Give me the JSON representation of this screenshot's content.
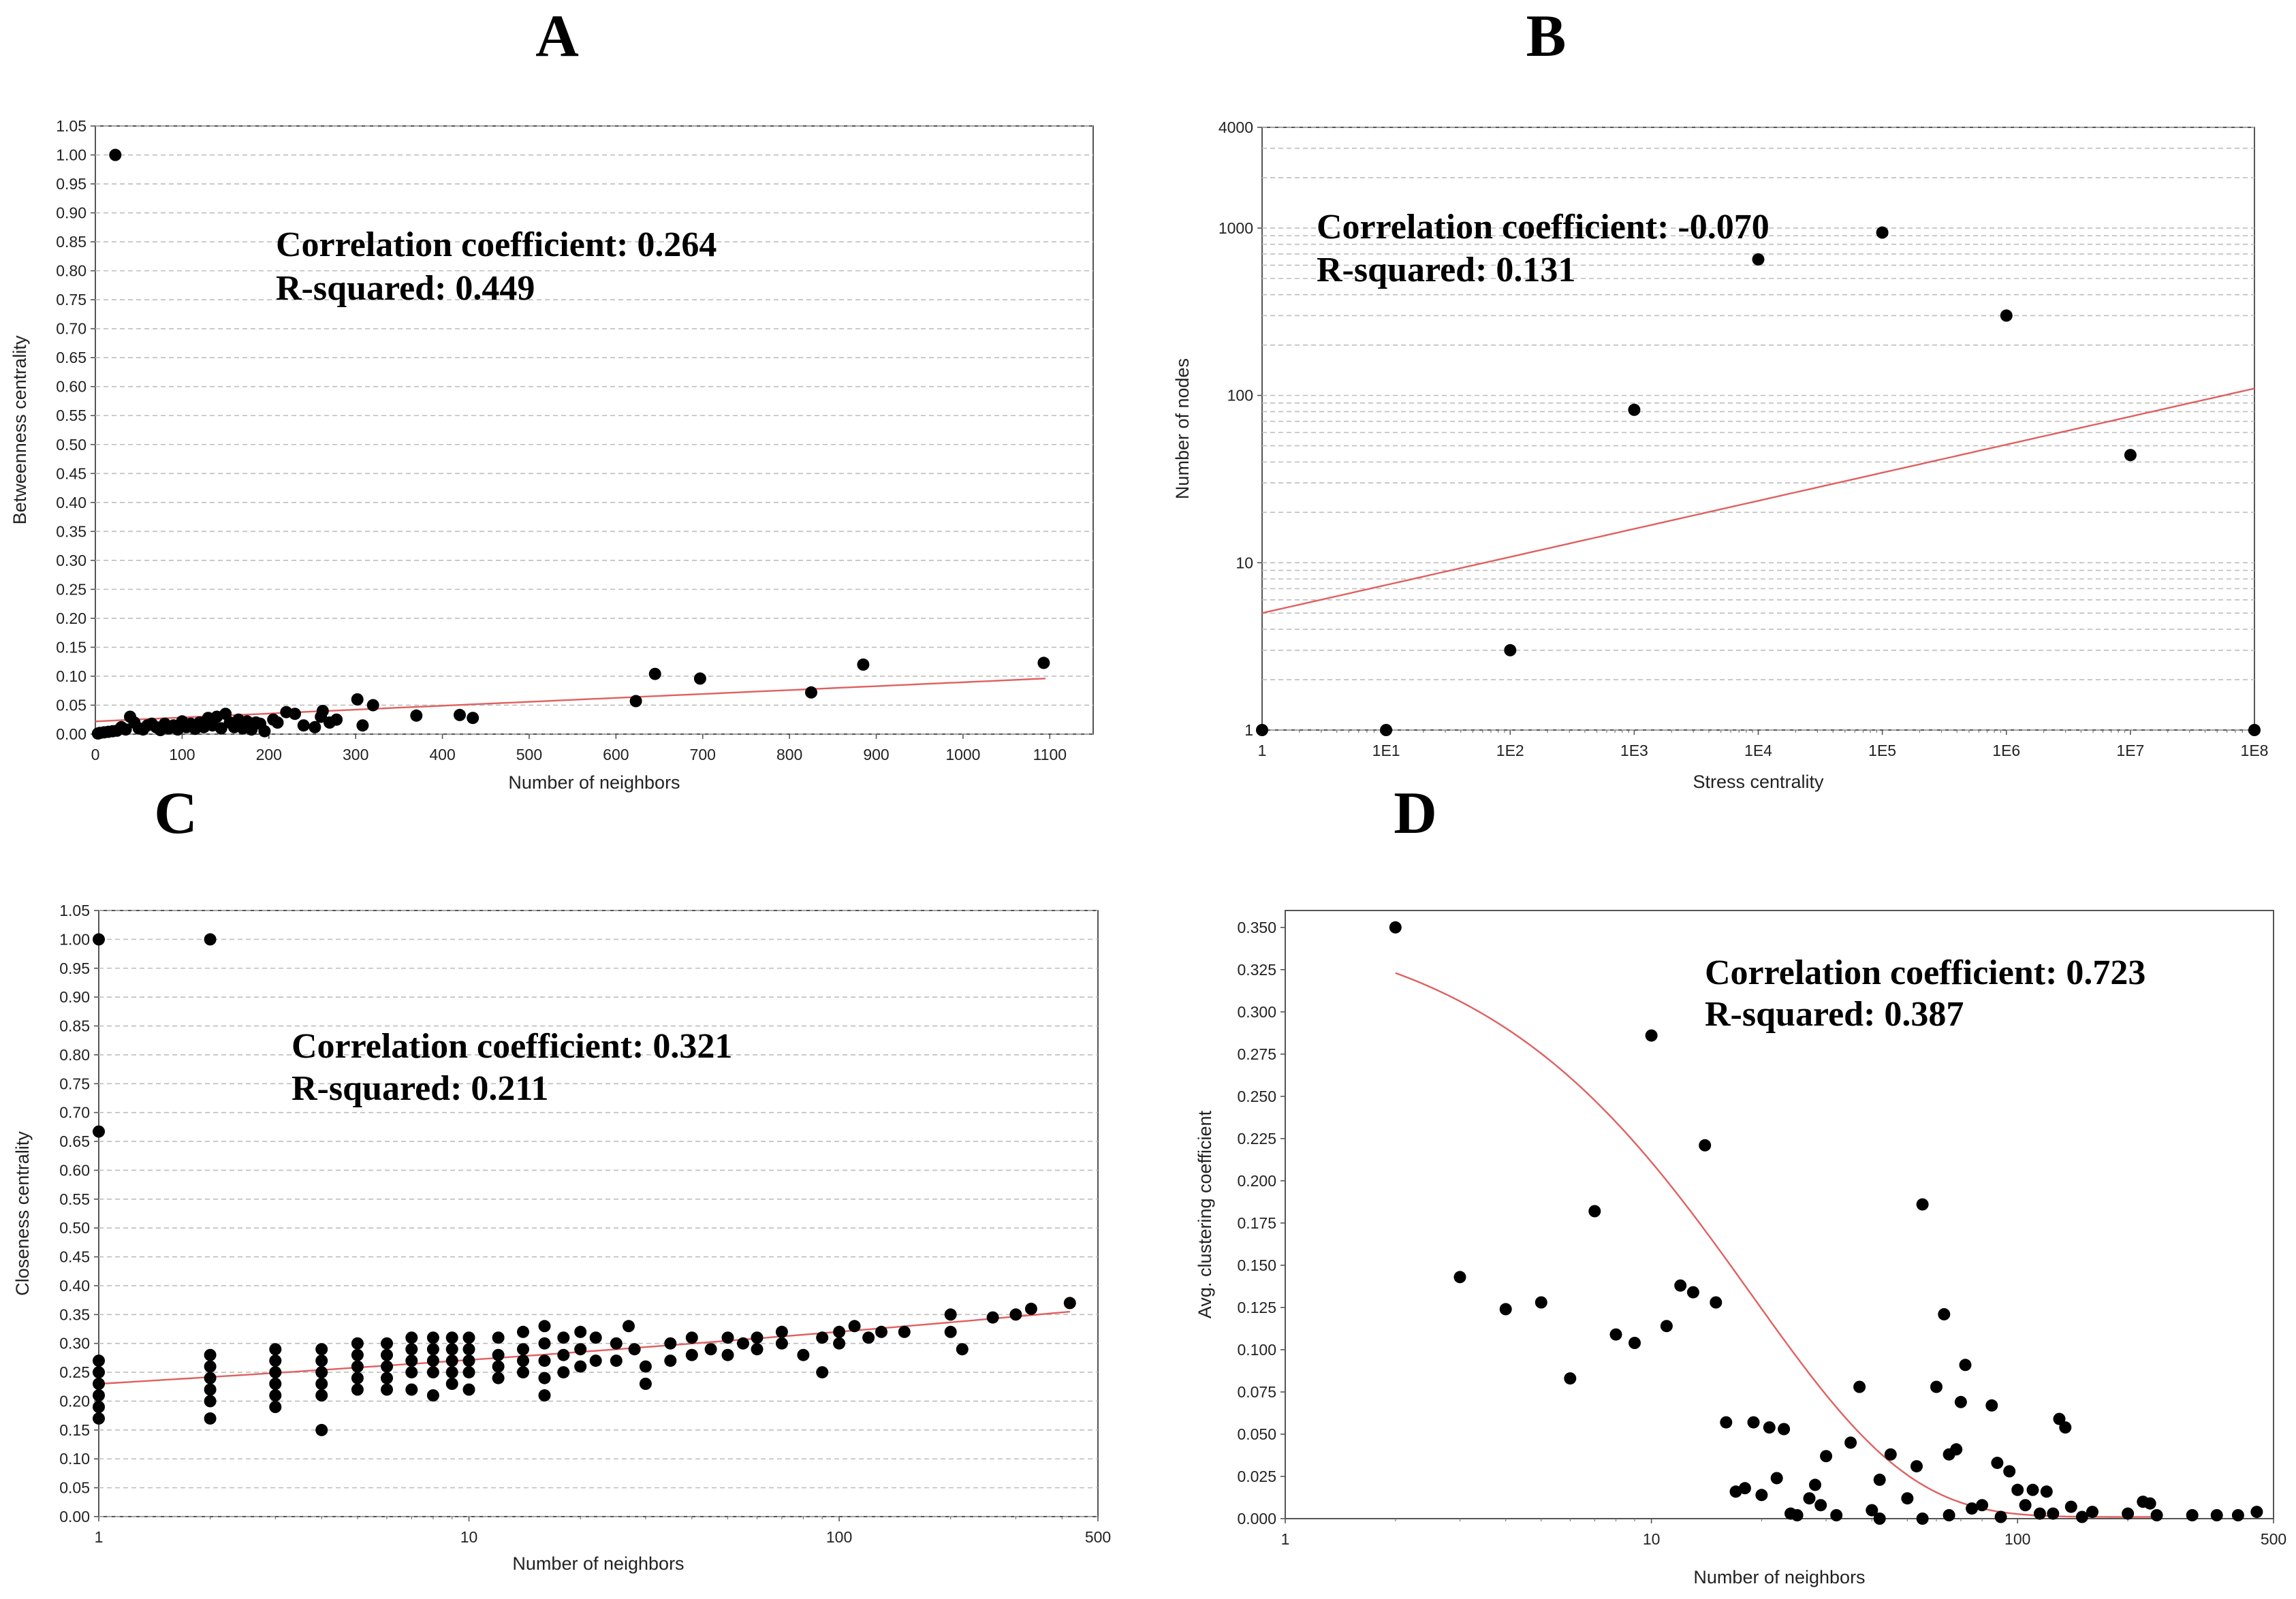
{
  "chart_data": [
    {
      "panel": "A",
      "type": "scatter",
      "xlabel": "Number of neighbors",
      "ylabel": "Betweenness centrality",
      "xscale": "linear",
      "yscale": "linear",
      "xlim": [
        0,
        1150
      ],
      "ylim": [
        0,
        1.05
      ],
      "xticks": [
        0,
        100,
        200,
        300,
        400,
        500,
        600,
        700,
        800,
        900,
        1000,
        1100
      ],
      "xtick_labels": [
        "0",
        "100",
        "200",
        "300",
        "400",
        "500",
        "600",
        "700",
        "800",
        "900",
        "1000",
        "1100"
      ],
      "yticks": [
        0,
        0.05,
        0.1,
        0.15,
        0.2,
        0.25,
        0.3,
        0.35,
        0.4,
        0.45,
        0.5,
        0.55,
        0.6,
        0.65,
        0.7,
        0.75,
        0.8,
        0.85,
        0.9,
        0.95,
        1.0,
        1.05
      ],
      "ytick_labels": [
        "0.00",
        "0.05",
        "0.10",
        "0.15",
        "0.20",
        "0.25",
        "0.30",
        "0.35",
        "0.40",
        "0.45",
        "0.50",
        "0.55",
        "0.60",
        "0.65",
        "0.70",
        "0.75",
        "0.80",
        "0.85",
        "0.90",
        "0.95",
        "1.00",
        "1.05"
      ],
      "grid": true,
      "annotation": [
        "Correlation coefficient: 0.264",
        "R-squared: 0.449"
      ],
      "fit": {
        "kind": "linear",
        "x": [
          0,
          1095
        ],
        "y": [
          0.022,
          0.096
        ]
      },
      "points": [
        [
          23,
          1.0
        ],
        [
          1093,
          0.123
        ],
        [
          885,
          0.12
        ],
        [
          645,
          0.104
        ],
        [
          697,
          0.096
        ],
        [
          825,
          0.072
        ],
        [
          623,
          0.057
        ],
        [
          302,
          0.06
        ],
        [
          320,
          0.05
        ],
        [
          308,
          0.015
        ],
        [
          370,
          0.032
        ],
        [
          420,
          0.033
        ],
        [
          435,
          0.028
        ],
        [
          262,
          0.04
        ],
        [
          278,
          0.025
        ],
        [
          253,
          0.012
        ],
        [
          230,
          0.035
        ],
        [
          220,
          0.038
        ],
        [
          205,
          0.025
        ],
        [
          190,
          0.018
        ],
        [
          150,
          0.035
        ],
        [
          140,
          0.03
        ],
        [
          130,
          0.028
        ],
        [
          120,
          0.02
        ],
        [
          100,
          0.022
        ],
        [
          90,
          0.015
        ],
        [
          80,
          0.018
        ],
        [
          70,
          0.012
        ],
        [
          60,
          0.015
        ],
        [
          50,
          0.01
        ],
        [
          40,
          0.03
        ],
        [
          35,
          0.008
        ],
        [
          30,
          0.012
        ],
        [
          25,
          0.006
        ],
        [
          20,
          0.005
        ],
        [
          15,
          0.004
        ],
        [
          10,
          0.003
        ],
        [
          5,
          0.002
        ],
        [
          3,
          0.001
        ],
        [
          45,
          0.02
        ],
        [
          55,
          0.008
        ],
        [
          65,
          0.018
        ],
        [
          75,
          0.007
        ],
        [
          85,
          0.01
        ],
        [
          95,
          0.008
        ],
        [
          105,
          0.012
        ],
        [
          110,
          0.018
        ],
        [
          115,
          0.009
        ],
        [
          125,
          0.012
        ],
        [
          135,
          0.015
        ],
        [
          145,
          0.01
        ],
        [
          155,
          0.02
        ],
        [
          160,
          0.012
        ],
        [
          165,
          0.025
        ],
        [
          170,
          0.01
        ],
        [
          175,
          0.022
        ],
        [
          180,
          0.008
        ],
        [
          185,
          0.02
        ],
        [
          195,
          0.005
        ],
        [
          210,
          0.02
        ],
        [
          240,
          0.015
        ],
        [
          260,
          0.03
        ],
        [
          270,
          0.02
        ]
      ]
    },
    {
      "panel": "B",
      "type": "scatter",
      "xlabel": "Stress centrality",
      "ylabel": "Number of nodes",
      "xscale": "log",
      "yscale": "log",
      "xlim": [
        1,
        100000000
      ],
      "ylim": [
        1,
        4000
      ],
      "xticks": [
        1,
        10,
        100,
        1000,
        10000,
        100000,
        1000000,
        10000000,
        100000000
      ],
      "xtick_labels": [
        "1",
        "1E1",
        "1E2",
        "1E3",
        "1E4",
        "1E5",
        "1E6",
        "1E7",
        "1E8"
      ],
      "yticks": [
        1,
        10,
        100,
        1000,
        4000
      ],
      "ytick_labels": [
        "1",
        "10",
        "100",
        "1000",
        "4000"
      ],
      "grid": true,
      "annotation": [
        "Correlation coefficient: -0.070",
        "R-squared: 0.131"
      ],
      "fit": {
        "kind": "linear",
        "x": [
          1,
          100000000
        ],
        "y": [
          5,
          110
        ]
      },
      "points": [
        [
          1,
          1
        ],
        [
          10,
          1
        ],
        [
          100,
          3
        ],
        [
          1000,
          82
        ],
        [
          10000,
          650
        ],
        [
          100000,
          940
        ],
        [
          1000000,
          300
        ],
        [
          10000000,
          44
        ],
        [
          100000000,
          1
        ]
      ]
    },
    {
      "panel": "C",
      "type": "scatter",
      "xlabel": "Number of neighbors",
      "ylabel": "Closeness centrality",
      "xscale": "log",
      "yscale": "linear",
      "xlim": [
        1,
        500
      ],
      "ylim": [
        0,
        1.05
      ],
      "xticks": [
        1,
        10,
        100,
        500
      ],
      "xtick_labels": [
        "1",
        "10",
        "100",
        "500"
      ],
      "yticks": [
        0,
        0.05,
        0.1,
        0.15,
        0.2,
        0.25,
        0.3,
        0.35,
        0.4,
        0.45,
        0.5,
        0.55,
        0.6,
        0.65,
        0.7,
        0.75,
        0.8,
        0.85,
        0.9,
        0.95,
        1.0,
        1.05
      ],
      "ytick_labels": [
        "0.00",
        "0.05",
        "0.10",
        "0.15",
        "0.20",
        "0.25",
        "0.30",
        "0.35",
        "0.40",
        "0.45",
        "0.50",
        "0.55",
        "0.60",
        "0.65",
        "0.70",
        "0.75",
        "0.80",
        "0.85",
        "0.90",
        "0.95",
        "1.00",
        "1.05"
      ],
      "grid": true,
      "annotation": [
        "Correlation coefficient: 0.321",
        "R-squared: 0.211"
      ],
      "fit": {
        "kind": "power",
        "x": [
          1,
          420
        ],
        "y": [
          0.23,
          0.355
        ]
      },
      "points": [
        [
          1,
          1.0
        ],
        [
          1,
          0.667
        ],
        [
          2,
          1.0
        ],
        [
          1,
          0.27
        ],
        [
          1,
          0.25
        ],
        [
          1,
          0.23
        ],
        [
          1,
          0.21
        ],
        [
          1,
          0.19
        ],
        [
          1,
          0.17
        ],
        [
          2,
          0.28
        ],
        [
          2,
          0.26
        ],
        [
          2,
          0.24
        ],
        [
          2,
          0.22
        ],
        [
          2,
          0.2
        ],
        [
          2,
          0.17
        ],
        [
          3,
          0.29
        ],
        [
          3,
          0.27
        ],
        [
          3,
          0.25
        ],
        [
          3,
          0.23
        ],
        [
          3,
          0.21
        ],
        [
          3,
          0.19
        ],
        [
          4,
          0.29
        ],
        [
          4,
          0.27
        ],
        [
          4,
          0.25
        ],
        [
          4,
          0.23
        ],
        [
          4,
          0.21
        ],
        [
          4,
          0.15
        ],
        [
          5,
          0.3
        ],
        [
          5,
          0.28
        ],
        [
          5,
          0.26
        ],
        [
          5,
          0.24
        ],
        [
          5,
          0.22
        ],
        [
          6,
          0.3
        ],
        [
          6,
          0.28
        ],
        [
          6,
          0.26
        ],
        [
          6,
          0.24
        ],
        [
          6,
          0.22
        ],
        [
          7,
          0.31
        ],
        [
          7,
          0.29
        ],
        [
          7,
          0.27
        ],
        [
          7,
          0.25
        ],
        [
          7,
          0.22
        ],
        [
          8,
          0.31
        ],
        [
          8,
          0.29
        ],
        [
          8,
          0.27
        ],
        [
          8,
          0.25
        ],
        [
          8,
          0.21
        ],
        [
          9,
          0.31
        ],
        [
          9,
          0.29
        ],
        [
          9,
          0.27
        ],
        [
          9,
          0.25
        ],
        [
          9,
          0.23
        ],
        [
          10,
          0.31
        ],
        [
          10,
          0.29
        ],
        [
          10,
          0.27
        ],
        [
          10,
          0.25
        ],
        [
          10,
          0.22
        ],
        [
          12,
          0.31
        ],
        [
          12,
          0.28
        ],
        [
          12,
          0.26
        ],
        [
          12,
          0.24
        ],
        [
          14,
          0.32
        ],
        [
          14,
          0.29
        ],
        [
          14,
          0.27
        ],
        [
          14,
          0.25
        ],
        [
          16,
          0.33
        ],
        [
          16,
          0.3
        ],
        [
          16,
          0.27
        ],
        [
          16,
          0.24
        ],
        [
          16,
          0.21
        ],
        [
          18,
          0.31
        ],
        [
          18,
          0.28
        ],
        [
          18,
          0.25
        ],
        [
          20,
          0.32
        ],
        [
          20,
          0.29
        ],
        [
          20,
          0.26
        ],
        [
          22,
          0.31
        ],
        [
          22,
          0.27
        ],
        [
          25,
          0.3
        ],
        [
          25,
          0.27
        ],
        [
          27,
          0.33
        ],
        [
          28,
          0.29
        ],
        [
          30,
          0.26
        ],
        [
          30,
          0.23
        ],
        [
          35,
          0.3
        ],
        [
          35,
          0.27
        ],
        [
          40,
          0.31
        ],
        [
          40,
          0.28
        ],
        [
          45,
          0.29
        ],
        [
          50,
          0.31
        ],
        [
          50,
          0.28
        ],
        [
          55,
          0.3
        ],
        [
          60,
          0.31
        ],
        [
          60,
          0.29
        ],
        [
          70,
          0.32
        ],
        [
          70,
          0.3
        ],
        [
          80,
          0.28
        ],
        [
          90,
          0.31
        ],
        [
          90,
          0.25
        ],
        [
          100,
          0.32
        ],
        [
          100,
          0.3
        ],
        [
          110,
          0.33
        ],
        [
          120,
          0.31
        ],
        [
          130,
          0.32
        ],
        [
          150,
          0.32
        ],
        [
          200,
          0.35
        ],
        [
          200,
          0.32
        ],
        [
          215,
          0.29
        ],
        [
          260,
          0.345
        ],
        [
          300,
          0.35
        ],
        [
          330,
          0.36
        ],
        [
          420,
          0.37
        ]
      ]
    },
    {
      "panel": "D",
      "type": "scatter",
      "xlabel": "Number of neighbors",
      "ylabel": "Avg. clustering coefficient",
      "xscale": "log",
      "yscale": "linear",
      "xlim": [
        1,
        500
      ],
      "ylim": [
        0,
        0.36
      ],
      "xticks": [
        1,
        10,
        100,
        500
      ],
      "xtick_labels": [
        "1",
        "10",
        "100",
        "500"
      ],
      "yticks": [
        0,
        0.025,
        0.05,
        0.075,
        0.1,
        0.125,
        0.15,
        0.175,
        0.2,
        0.225,
        0.25,
        0.275,
        0.3,
        0.325,
        0.35
      ],
      "ytick_labels": [
        "0.000",
        "0.025",
        "0.050",
        "0.075",
        "0.100",
        "0.125",
        "0.150",
        "0.175",
        "0.200",
        "0.225",
        "0.250",
        "0.275",
        "0.300",
        "0.325",
        "0.350"
      ],
      "grid": false,
      "annotation": [
        "Correlation coefficient: 0.723",
        "R-squared: 0.387"
      ],
      "fit": {
        "kind": "exponential",
        "x": [
          2,
          240
        ],
        "y": [
          0.322,
          0.001
        ]
      },
      "points": [
        [
          2,
          0.35
        ],
        [
          3,
          0.143
        ],
        [
          4,
          0.124
        ],
        [
          5,
          0.128
        ],
        [
          6,
          0.083
        ],
        [
          7,
          0.182
        ],
        [
          8,
          0.109
        ],
        [
          9,
          0.104
        ],
        [
          10,
          0.286
        ],
        [
          11,
          0.114
        ],
        [
          12,
          0.138
        ],
        [
          13,
          0.134
        ],
        [
          14,
          0.221
        ],
        [
          15,
          0.128
        ],
        [
          16,
          0.057
        ],
        [
          17,
          0.016
        ],
        [
          18,
          0.018
        ],
        [
          19,
          0.057
        ],
        [
          20,
          0.014
        ],
        [
          21,
          0.054
        ],
        [
          22,
          0.024
        ],
        [
          23,
          0.053
        ],
        [
          24,
          0.003
        ],
        [
          25,
          0.002
        ],
        [
          27,
          0.012
        ],
        [
          28,
          0.02
        ],
        [
          29,
          0.008
        ],
        [
          30,
          0.037
        ],
        [
          32,
          0.002
        ],
        [
          35,
          0.045
        ],
        [
          37,
          0.078
        ],
        [
          40,
          0.005
        ],
        [
          42,
          0.023
        ],
        [
          45,
          0.038
        ],
        [
          50,
          0.012
        ],
        [
          53,
          0.031
        ],
        [
          55,
          0.186
        ],
        [
          60,
          0.078
        ],
        [
          63,
          0.121
        ],
        [
          65,
          0.038
        ],
        [
          68,
          0.041
        ],
        [
          70,
          0.069
        ],
        [
          72,
          0.091
        ],
        [
          75,
          0.006
        ],
        [
          80,
          0.008
        ],
        [
          85,
          0.067
        ],
        [
          88,
          0.033
        ],
        [
          95,
          0.028
        ],
        [
          100,
          0.017
        ],
        [
          105,
          0.008
        ],
        [
          110,
          0.017
        ],
        [
          120,
          0.016
        ],
        [
          125,
          0.003
        ],
        [
          130,
          0.059
        ],
        [
          135,
          0.054
        ],
        [
          140,
          0.007
        ],
        [
          160,
          0.004
        ],
        [
          200,
          0.003
        ],
        [
          220,
          0.01
        ],
        [
          230,
          0.009
        ],
        [
          240,
          0.002
        ],
        [
          300,
          0.002
        ],
        [
          350,
          0.002
        ],
        [
          400,
          0.002
        ],
        [
          450,
          0.004
        ],
        [
          42,
          0.0
        ],
        [
          55,
          0.0
        ],
        [
          65,
          0.002
        ],
        [
          90,
          0.001
        ],
        [
          115,
          0.003
        ],
        [
          150,
          0.001
        ]
      ]
    }
  ]
}
